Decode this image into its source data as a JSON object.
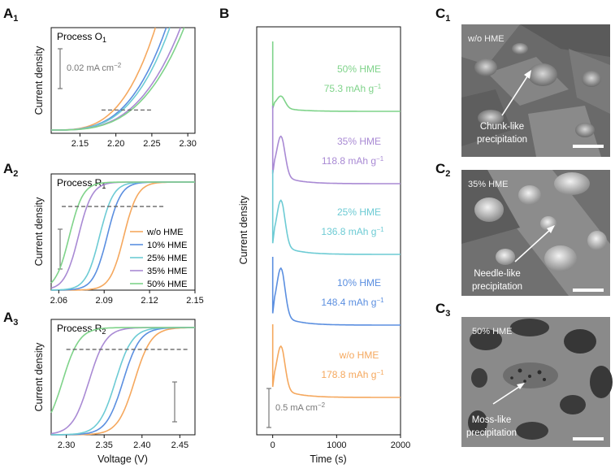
{
  "colors": {
    "wo": "#f5a85e",
    "p10": "#5b8fe0",
    "p25": "#6dcbd4",
    "p35": "#a98ad4",
    "p50": "#7fd38a",
    "gray": "#777777"
  },
  "panels": {
    "A1": {
      "label": "A",
      "sub": "1",
      "process_text": "Process O",
      "process_sub": "1",
      "scale_text": "0.02 mA cm",
      "scale_sup": "−2",
      "y_label": "Current density"
    },
    "A2": {
      "label": "A",
      "sub": "2",
      "process_text": "Process R",
      "process_sub": "1",
      "y_label": "Current density"
    },
    "A3": {
      "label": "A",
      "sub": "3",
      "process_text": "Process R",
      "process_sub": "2",
      "y_label": "Current density",
      "x_label": "Voltage (V)"
    },
    "B": {
      "label": "B",
      "y_label": "Current density",
      "x_label": "Time (s)",
      "scale_text": "0.5 mA cm",
      "scale_sup": "−2"
    },
    "C1": {
      "label": "C",
      "sub": "1",
      "corner": "w/o HME",
      "caption_1": "Chunk-like",
      "caption_2": "precipitation"
    },
    "C2": {
      "label": "C",
      "sub": "2",
      "corner": "35% HME",
      "caption_1": "Needle-like",
      "caption_2": "precipitation"
    },
    "C3": {
      "label": "C",
      "sub": "3",
      "corner": "50% HME",
      "caption_1": "Moss-like",
      "caption_2": "precipitation"
    }
  },
  "legend": [
    "w/o HME",
    "10% HME",
    "25% HME",
    "35% HME",
    "50% HME"
  ],
  "chart_data": [
    {
      "id": "A1",
      "type": "line",
      "title": "Process O1",
      "xlabel": "",
      "ylabel": "Current density",
      "xlim": [
        2.11,
        2.31
      ],
      "xticks": [
        "2.15",
        "2.20",
        "2.25",
        "2.30"
      ],
      "dashed_reference": [
        2.18,
        2.25
      ],
      "series": [
        {
          "name": "w/o HME",
          "onset": 2.255
        },
        {
          "name": "10% HME",
          "onset": 2.27
        },
        {
          "name": "25% HME",
          "onset": 2.275
        },
        {
          "name": "35% HME",
          "onset": 2.29
        },
        {
          "name": "50% HME",
          "onset": 2.295
        }
      ]
    },
    {
      "id": "A2",
      "type": "line",
      "title": "Process R1",
      "xlabel": "",
      "ylabel": "Current density",
      "xlim": [
        2.055,
        2.15
      ],
      "xticks": [
        "2.06",
        "2.09",
        "2.12",
        "2.15"
      ],
      "dashed_reference": [
        2.062,
        2.13
      ],
      "series": [
        {
          "name": "w/o HME",
          "onset": 2.103
        },
        {
          "name": "10% HME",
          "onset": 2.092
        },
        {
          "name": "25% HME",
          "onset": 2.087
        },
        {
          "name": "35% HME",
          "onset": 2.073
        },
        {
          "name": "50% HME",
          "onset": 2.067
        }
      ]
    },
    {
      "id": "A3",
      "type": "line",
      "title": "Process R2",
      "xlabel": "Voltage (V)",
      "ylabel": "Current density",
      "xlim": [
        2.28,
        2.47
      ],
      "xticks": [
        "2.30",
        "2.35",
        "2.40",
        "2.45"
      ],
      "dashed_reference": [
        2.3,
        2.46
      ],
      "series": [
        {
          "name": "w/o HME",
          "onset": 2.39
        },
        {
          "name": "10% HME",
          "onset": 2.375
        },
        {
          "name": "25% HME",
          "onset": 2.365
        },
        {
          "name": "35% HME",
          "onset": 2.33
        },
        {
          "name": "50% HME",
          "onset": 2.295
        }
      ]
    },
    {
      "id": "B",
      "type": "line",
      "title": "",
      "xlabel": "Time (s)",
      "ylabel": "Current density",
      "xlim": [
        -250,
        2000
      ],
      "xticks": [
        "0",
        "1000",
        "2000"
      ],
      "series": [
        {
          "name": "50% HME",
          "capacity": "75.3 mAh g",
          "cap_sup": "−1"
        },
        {
          "name": "35% HME",
          "capacity": "118.8 mAh g",
          "cap_sup": "−1"
        },
        {
          "name": "25% HME",
          "capacity": "136.8 mAh g",
          "cap_sup": "−1"
        },
        {
          "name": "10% HME",
          "capacity": "148.4 mAh g",
          "cap_sup": "−1"
        },
        {
          "name": "w/o HME",
          "capacity": "178.8 mAh g",
          "cap_sup": "−1"
        }
      ]
    }
  ]
}
